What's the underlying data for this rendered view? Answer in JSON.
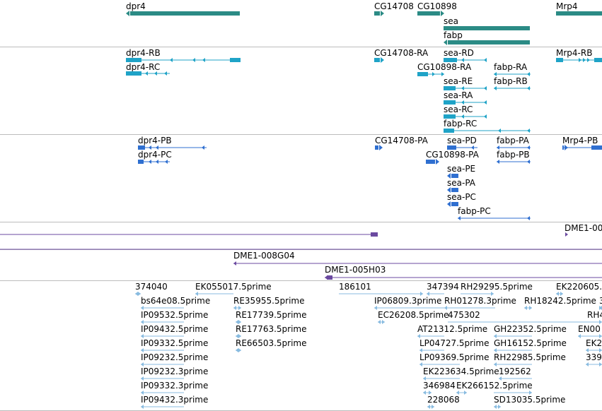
{
  "colors": {
    "gene": "#2b8b85",
    "transcript": "#1fa3c7",
    "protein": "#2f6fd0",
    "clone": "#6b4aa0",
    "est": "#88bbe0",
    "divider": "#bcbcbc"
  },
  "tracks": {
    "genes": {
      "name": "genes",
      "features": [
        {
          "id": "g-dpr4",
          "label": "dpr4"
        },
        {
          "id": "g-cg14708",
          "label": "CG14708"
        },
        {
          "id": "g-cg10898",
          "label": "CG10898"
        },
        {
          "id": "g-mrp4",
          "label": "Mrp4"
        },
        {
          "id": "g-sea",
          "label": "sea"
        },
        {
          "id": "g-fabp",
          "label": "fabp"
        }
      ]
    },
    "transcripts": {
      "name": "transcripts",
      "features": [
        {
          "id": "t-dpr4-rb",
          "label": "dpr4-RB"
        },
        {
          "id": "t-dpr4-rc",
          "label": "dpr4-RC"
        },
        {
          "id": "t-cg14708-ra",
          "label": "CG14708-RA"
        },
        {
          "id": "t-cg10898-ra",
          "label": "CG10898-RA"
        },
        {
          "id": "t-sea-rd",
          "label": "sea-RD"
        },
        {
          "id": "t-sea-re",
          "label": "sea-RE"
        },
        {
          "id": "t-sea-ra",
          "label": "sea-RA"
        },
        {
          "id": "t-sea-rc",
          "label": "sea-RC"
        },
        {
          "id": "t-fabp-rc",
          "label": "fabp-RC"
        },
        {
          "id": "t-fabp-ra",
          "label": "fabp-RA"
        },
        {
          "id": "t-fabp-rb",
          "label": "fabp-RB"
        },
        {
          "id": "t-mrp4-rb",
          "label": "Mrp4-RB"
        }
      ]
    },
    "proteins": {
      "name": "proteins",
      "features": [
        {
          "id": "p-dpr4-pb",
          "label": "dpr4-PB"
        },
        {
          "id": "p-dpr4-pc",
          "label": "dpr4-PC"
        },
        {
          "id": "p-cg14708-pa",
          "label": "CG14708-PA"
        },
        {
          "id": "p-cg10898-pa",
          "label": "CG10898-PA"
        },
        {
          "id": "p-sea-pd",
          "label": "sea-PD"
        },
        {
          "id": "p-sea-pe",
          "label": "sea-PE"
        },
        {
          "id": "p-sea-pa",
          "label": "sea-PA"
        },
        {
          "id": "p-sea-pc",
          "label": "sea-PC"
        },
        {
          "id": "p-fabp-pa",
          "label": "fabp-PA"
        },
        {
          "id": "p-fabp-pb",
          "label": "fabp-PB"
        },
        {
          "id": "p-fabp-pc",
          "label": "fabp-PC"
        },
        {
          "id": "p-mrp4-pb",
          "label": "Mrp4-PB"
        }
      ]
    },
    "clones": {
      "name": "clones",
      "features": [
        {
          "id": "c-dme1-00",
          "label": "DME1-00"
        },
        {
          "id": "c-dme1-008g04",
          "label": "DME1-008G04"
        },
        {
          "id": "c-dme1-005h03",
          "label": "DME1-005H03"
        }
      ]
    },
    "ests": {
      "name": "ests",
      "features": [
        {
          "id": "e1",
          "label": "374040"
        },
        {
          "id": "e2",
          "label": "EK055017.5prime"
        },
        {
          "id": "e3",
          "label": "186101"
        },
        {
          "id": "e4",
          "label": "347394"
        },
        {
          "id": "e5",
          "label": "RH29295.5prime"
        },
        {
          "id": "e6",
          "label": "EK220605."
        },
        {
          "id": "e7",
          "label": "bs64e08.5prime"
        },
        {
          "id": "e8",
          "label": "RE35955.5prime"
        },
        {
          "id": "e9",
          "label": "IP06809.3prime"
        },
        {
          "id": "e10",
          "label": "RH01278.3prime"
        },
        {
          "id": "e11",
          "label": "RH18242.5prime"
        },
        {
          "id": "e12",
          "label": "3"
        },
        {
          "id": "e13",
          "label": "IP09532.5prime"
        },
        {
          "id": "e14",
          "label": "RE17739.5prime"
        },
        {
          "id": "e15",
          "label": "EC26208.5prime"
        },
        {
          "id": "e16",
          "label": "475302"
        },
        {
          "id": "e17",
          "label": "RH4"
        },
        {
          "id": "e18",
          "label": "IP09432.5prime"
        },
        {
          "id": "e19",
          "label": "RE17763.5prime"
        },
        {
          "id": "e20",
          "label": "AT21312.5prime"
        },
        {
          "id": "e21",
          "label": "GH22352.5prime"
        },
        {
          "id": "e22",
          "label": "EN00"
        },
        {
          "id": "e23",
          "label": "IP09332.5prime"
        },
        {
          "id": "e24",
          "label": "RE66503.5prime"
        },
        {
          "id": "e25",
          "label": "LP04727.5prime"
        },
        {
          "id": "e26",
          "label": "GH16152.5prime"
        },
        {
          "id": "e27",
          "label": "EK2"
        },
        {
          "id": "e28",
          "label": "IP09232.5prime"
        },
        {
          "id": "e29",
          "label": "LP09369.5prime"
        },
        {
          "id": "e30",
          "label": "RH22985.5prime"
        },
        {
          "id": "e31",
          "label": "339"
        },
        {
          "id": "e32",
          "label": "IP09232.3prime"
        },
        {
          "id": "e33",
          "label": "EK223634.5prime"
        },
        {
          "id": "e34",
          "label": "192562"
        },
        {
          "id": "e35",
          "label": "IP09332.3prime"
        },
        {
          "id": "e36",
          "label": "346984"
        },
        {
          "id": "e37",
          "label": "EK266152.5prime"
        },
        {
          "id": "e38",
          "label": "IP09432.3prime"
        },
        {
          "id": "e39",
          "label": "228068"
        },
        {
          "id": "e40",
          "label": "SD13035.5prime"
        }
      ]
    }
  }
}
